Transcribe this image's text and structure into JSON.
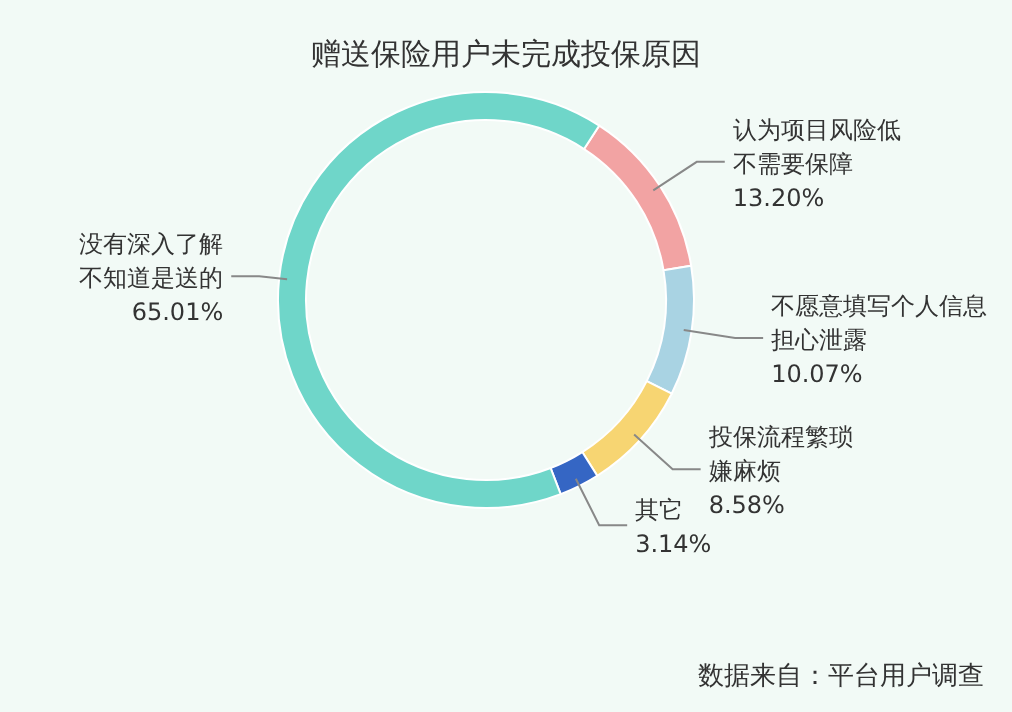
{
  "chart_data": {
    "type": "donut",
    "title": "赠送保险用户未完成投保原因",
    "categories": [
      "认为项目风险低不需要保障",
      "不愿意填写个人信息担心泄露",
      "投保流程繁琐嫌麻烦",
      "其它",
      "没有深入了解不知道是送的"
    ],
    "values": [
      13.2,
      10.07,
      8.58,
      3.14,
      65.01
    ],
    "value_labels": [
      "13.20%",
      "10.07%",
      "8.58%",
      "3.14%",
      "65.01%"
    ],
    "colors": [
      "#f2a3a3",
      "#a9d3e3",
      "#f7d572",
      "#3566c4",
      "#6fd6c9"
    ],
    "annotations": [
      "数据来自：平台用户调查"
    ]
  }
}
